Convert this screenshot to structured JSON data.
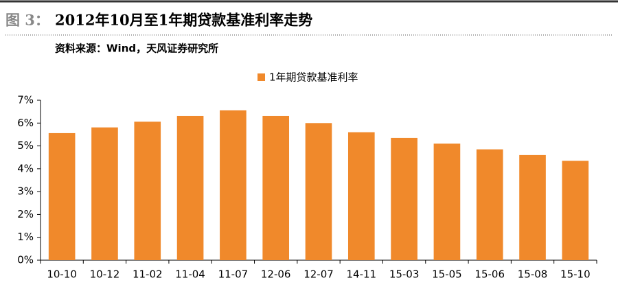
{
  "chart_data": {
    "type": "bar",
    "figure_label": "图 3：",
    "title": "2012年10月至1年期贷款基准利率走势",
    "source": "资料来源：Wind，天风证券研究所",
    "categories": [
      "10-10",
      "10-12",
      "11-02",
      "11-04",
      "11-07",
      "12-06",
      "12-07",
      "14-11",
      "15-03",
      "15-05",
      "15-06",
      "15-08",
      "15-10"
    ],
    "series": [
      {
        "name": "1年期贷款基准利率",
        "color": "#f0892b",
        "values": [
          5.56,
          5.81,
          6.06,
          6.31,
          6.56,
          6.31,
          6.0,
          5.6,
          5.35,
          5.1,
          4.85,
          4.6,
          4.35
        ]
      }
    ],
    "ylim": [
      0,
      7
    ],
    "yticks": [
      {
        "value": 0,
        "label": "0%"
      },
      {
        "value": 1,
        "label": "1%"
      },
      {
        "value": 2,
        "label": "2%"
      },
      {
        "value": 3,
        "label": "3%"
      },
      {
        "value": 4,
        "label": "4%"
      },
      {
        "value": 5,
        "label": "5%"
      },
      {
        "value": 6,
        "label": "6%"
      },
      {
        "value": 7,
        "label": "7%"
      }
    ],
    "legend": "top"
  }
}
